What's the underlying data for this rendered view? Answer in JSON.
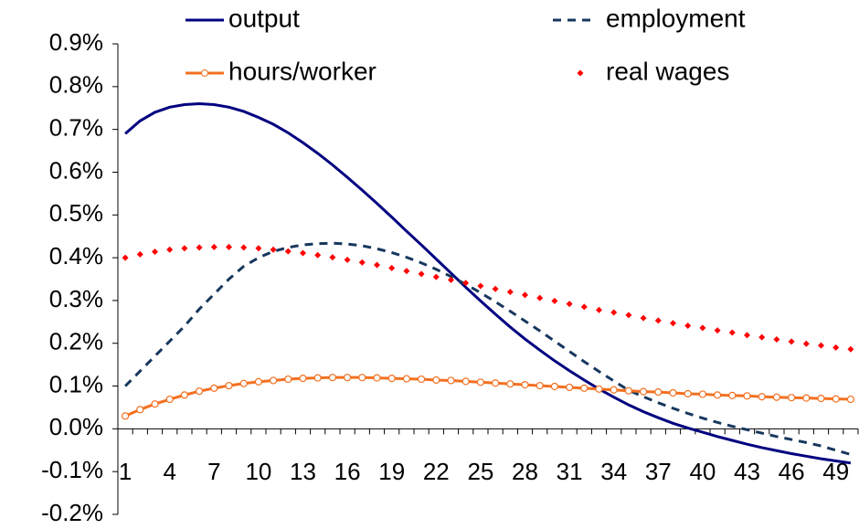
{
  "chart_data": {
    "type": "line",
    "categories": [
      1,
      null,
      null,
      4,
      null,
      null,
      7,
      null,
      null,
      10,
      null,
      null,
      13,
      null,
      null,
      16,
      null,
      null,
      19,
      null,
      null,
      22,
      null,
      null,
      25,
      null,
      null,
      28,
      null,
      null,
      31,
      null,
      null,
      34,
      null,
      null,
      37,
      null,
      null,
      40,
      null,
      null,
      43,
      null,
      null,
      46,
      null,
      null,
      49,
      null
    ],
    "series": [
      {
        "name": "output",
        "color": "#000080",
        "style": "solid",
        "values": [
          0.69,
          0.72,
          0.74,
          0.752,
          0.758,
          0.76,
          0.758,
          0.752,
          0.742,
          0.728,
          0.712,
          0.692,
          0.669,
          0.644,
          0.617,
          0.588,
          0.558,
          0.527,
          0.495,
          0.462,
          0.43,
          0.397,
          0.364,
          0.331,
          0.299,
          0.268,
          0.238,
          0.21,
          0.184,
          0.159,
          0.136,
          0.114,
          0.093,
          0.074,
          0.056,
          0.04,
          0.026,
          0.013,
          0.002,
          -0.008,
          -0.018,
          -0.027,
          -0.036,
          -0.044,
          -0.051,
          -0.058,
          -0.064,
          -0.07,
          -0.075,
          -0.08
        ]
      },
      {
        "name": "employment",
        "color": "#17375e",
        "style": "dashed",
        "values": [
          0.1,
          0.135,
          0.17,
          0.205,
          0.24,
          0.28,
          0.315,
          0.35,
          0.38,
          0.4,
          0.415,
          0.424,
          0.43,
          0.433,
          0.434,
          0.432,
          0.428,
          0.421,
          0.412,
          0.401,
          0.388,
          0.373,
          0.356,
          0.338,
          0.318,
          0.297,
          0.275,
          0.252,
          0.229,
          0.205,
          0.181,
          0.157,
          0.134,
          0.112,
          0.09,
          0.075,
          0.061,
          0.048,
          0.036,
          0.025,
          0.015,
          0.006,
          -0.002,
          -0.01,
          -0.018,
          -0.025,
          -0.032,
          -0.04,
          -0.05,
          -0.06
        ]
      },
      {
        "name": "hours/worker",
        "color": "#f37021",
        "style": "line-circle",
        "values": [
          0.03,
          0.045,
          0.058,
          0.069,
          0.079,
          0.088,
          0.095,
          0.101,
          0.106,
          0.11,
          0.113,
          0.116,
          0.118,
          0.119,
          0.12,
          0.12,
          0.12,
          0.119,
          0.118,
          0.117,
          0.116,
          0.114,
          0.113,
          0.111,
          0.109,
          0.107,
          0.105,
          0.103,
          0.101,
          0.099,
          0.097,
          0.095,
          0.093,
          0.091,
          0.089,
          0.087,
          0.086,
          0.084,
          0.082,
          0.081,
          0.079,
          0.078,
          0.077,
          0.075,
          0.074,
          0.073,
          0.072,
          0.071,
          0.07,
          0.069
        ]
      },
      {
        "name": "real wages",
        "color": "#ff0000",
        "style": "diamond",
        "values": [
          0.4,
          0.408,
          0.414,
          0.419,
          0.422,
          0.424,
          0.425,
          0.425,
          0.424,
          0.422,
          0.419,
          0.415,
          0.411,
          0.406,
          0.401,
          0.395,
          0.389,
          0.383,
          0.376,
          0.369,
          0.362,
          0.355,
          0.348,
          0.341,
          0.334,
          0.327,
          0.32,
          0.313,
          0.306,
          0.299,
          0.292,
          0.285,
          0.278,
          0.272,
          0.266,
          0.259,
          0.253,
          0.247,
          0.241,
          0.236,
          0.23,
          0.225,
          0.219,
          0.214,
          0.209,
          0.204,
          0.199,
          0.195,
          0.19,
          0.186
        ]
      }
    ],
    "ylim": [
      -0.2,
      0.9
    ],
    "yticks": [
      {
        "value": -0.2,
        "label": "-0.2%"
      },
      {
        "value": -0.1,
        "label": "-0.1%"
      },
      {
        "value": 0,
        "label": "0.0%"
      },
      {
        "value": 0.1,
        "label": "0.1%"
      },
      {
        "value": 0.2,
        "label": "0.2%"
      },
      {
        "value": 0.3,
        "label": "0.3%"
      },
      {
        "value": 0.4,
        "label": "0.4%"
      },
      {
        "value": 0.5,
        "label": "0.5%"
      },
      {
        "value": 0.6,
        "label": "0.6%"
      },
      {
        "value": 0.7,
        "label": "0.7%"
      },
      {
        "value": 0.8,
        "label": "0.8%"
      },
      {
        "value": 0.9,
        "label": "0.9%"
      }
    ],
    "grid": false,
    "legend": "top"
  }
}
